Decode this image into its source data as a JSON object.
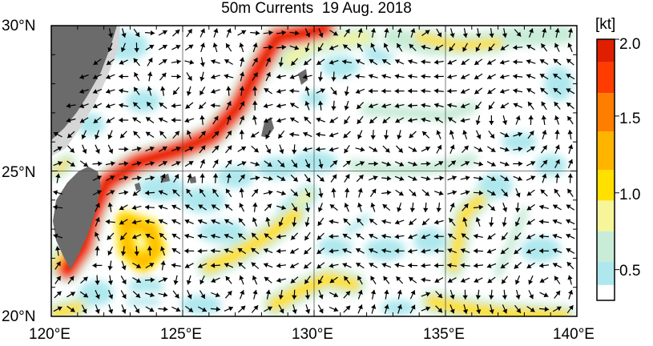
{
  "title": "50m Currents  19 Aug. 2018",
  "lat_labels": [
    "30°N",
    "25°N",
    "20°N"
  ],
  "lon_labels": [
    "120°E",
    "125°E",
    "130°E",
    "135°E",
    "140°E"
  ],
  "colorbar": {
    "unit": "[kt]",
    "tick_labels": [
      "2.0",
      "1.5",
      "1.0",
      "0.5"
    ],
    "ticks": [
      2.0,
      1.5,
      1.0,
      0.5
    ],
    "range": [
      0.3,
      2.0
    ],
    "colors": [
      "#ffffff",
      "#aee8ee",
      "#c8ecd8",
      "#f6f59a",
      "#ffe000",
      "#ffb400",
      "#ff7e00",
      "#ff3c00",
      "#e01e00"
    ]
  },
  "map": {
    "lon_range": [
      120,
      140
    ],
    "lat_range": [
      20,
      30
    ],
    "land_color": "#6b6b6b",
    "island_color": "#666666",
    "coast_shelf_color": "#d0d0d0",
    "arrow_color": "#000000",
    "grid_color": "#555555"
  }
}
